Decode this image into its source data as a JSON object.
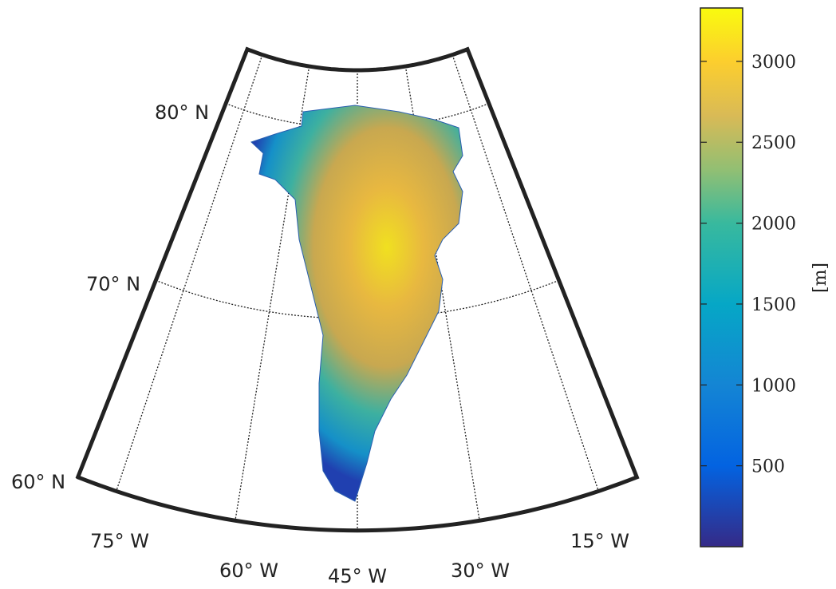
{
  "map": {
    "lat_labels": [
      "80° N",
      "70° N",
      "60° N"
    ],
    "lon_labels": [
      "75° W",
      "60° W",
      "45° W",
      "30° W",
      "15° W"
    ]
  },
  "colorbar": {
    "label": "[m]",
    "range": [
      0,
      3330
    ],
    "ticks": [
      500,
      1000,
      1500,
      2000,
      2500,
      3000
    ]
  }
}
